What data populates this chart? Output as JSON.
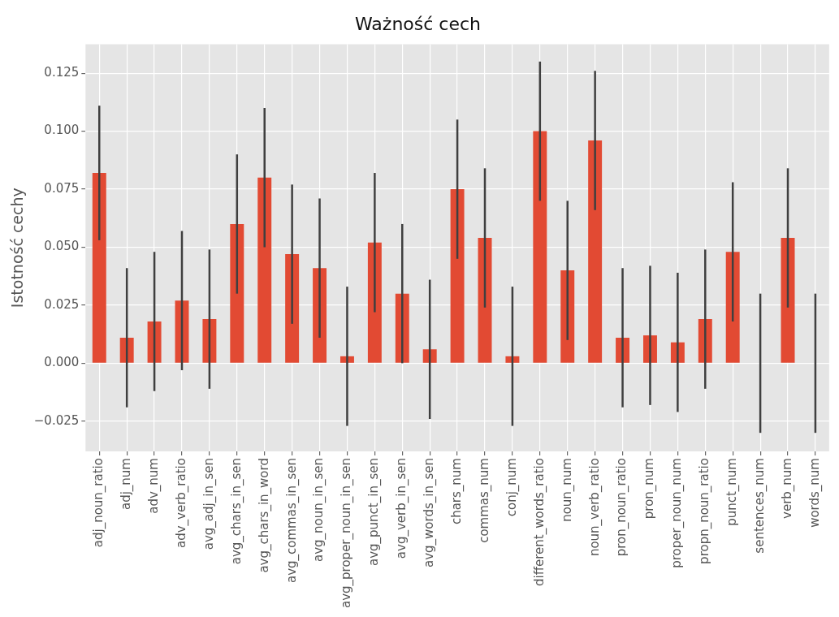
{
  "chart_data": {
    "type": "bar",
    "title": "Ważność cech",
    "ylabel": "Istotność cechy",
    "categories": [
      "adj_noun_ratio",
      "adj_num",
      "adv_num",
      "adv_verb_ratio",
      "avg_adj_in_sen",
      "avg_chars_in_sen",
      "avg_chars_in_word",
      "avg_commas_in_sen",
      "avg_noun_in_sen",
      "avg_proper_noun_in_sen",
      "avg_punct_in_sen",
      "avg_verb_in_sen",
      "avg_words_in_sen",
      "chars_num",
      "commas_num",
      "conj_num",
      "different_words_ratio",
      "noun_num",
      "noun_verb_ratio",
      "pron_noun_ratio",
      "pron_num",
      "proper_noun_num",
      "propn_noun_ratio",
      "punct_num",
      "sentences_num",
      "verb_num",
      "words_num"
    ],
    "values": [
      0.082,
      0.011,
      0.018,
      0.027,
      0.019,
      0.06,
      0.08,
      0.047,
      0.041,
      0.003,
      0.052,
      0.03,
      0.006,
      0.075,
      0.054,
      0.003,
      0.1,
      0.04,
      0.096,
      0.011,
      0.012,
      0.009,
      0.019,
      0.048,
      0.0,
      0.054,
      0.0
    ],
    "errors": [
      0.029,
      0.03,
      0.03,
      0.03,
      0.03,
      0.03,
      0.03,
      0.03,
      0.03,
      0.03,
      0.03,
      0.03,
      0.03,
      0.03,
      0.03,
      0.03,
      0.03,
      0.03,
      0.03,
      0.03,
      0.03,
      0.03,
      0.03,
      0.03,
      0.03,
      0.03,
      0.03
    ],
    "color": "#e24a33",
    "ylim": [
      -0.038,
      0.1375
    ],
    "yticks": [
      {
        "value": -0.025,
        "label": "−0.025"
      },
      {
        "value": 0,
        "label": "0.000"
      },
      {
        "value": 0.025,
        "label": "0.025"
      },
      {
        "value": 0.05,
        "label": "0.050"
      },
      {
        "value": 0.075,
        "label": "0.075"
      },
      {
        "value": 0.1,
        "label": "0.100"
      },
      {
        "value": 0.125,
        "label": "0.125"
      }
    ],
    "grid": true,
    "legend": false
  }
}
